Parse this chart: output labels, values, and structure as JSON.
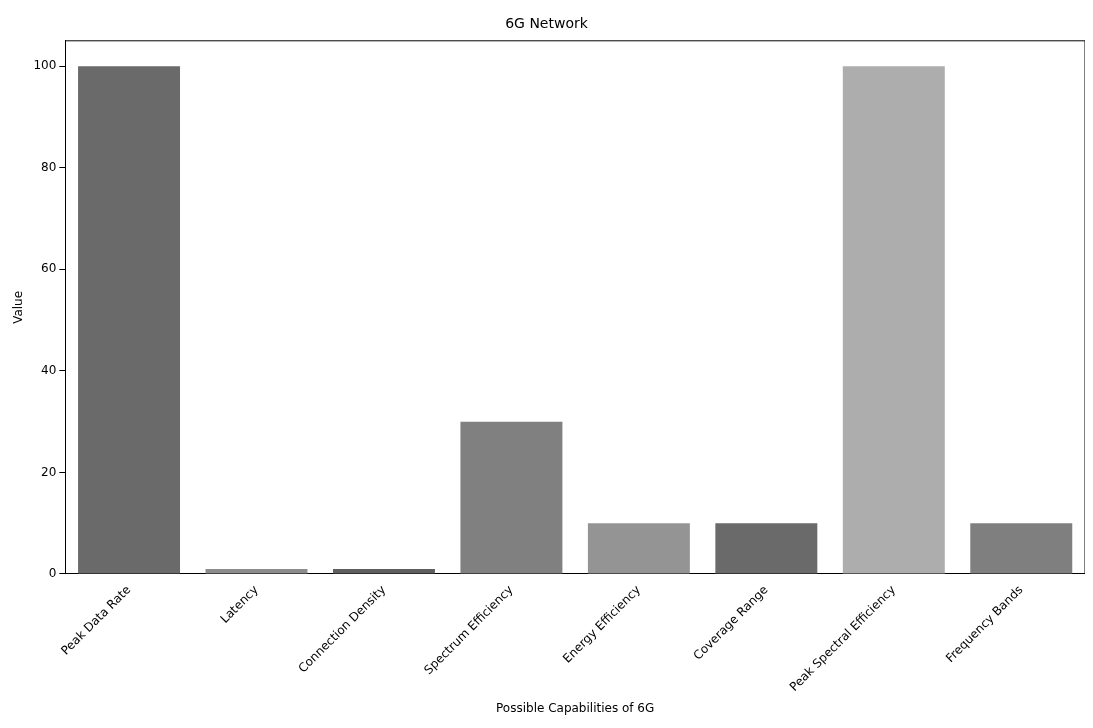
{
  "chart_data": {
    "type": "bar",
    "title": "6G Network",
    "xlabel": "Possible Capabilities of 6G",
    "ylabel": "Value",
    "categories": [
      "Peak Data Rate",
      "Latency",
      "Connection Density",
      "Spectrum Efficiency",
      "Energy Efficiency",
      "Coverage Range",
      "Peak Spectral Efficiency",
      "Frequency Bands"
    ],
    "values": [
      100,
      1,
      1,
      30,
      10,
      10,
      100,
      10
    ],
    "colors": [
      "#6a6a6a",
      "#8c8c8c",
      "#5f5f5f",
      "#808080",
      "#949494",
      "#6a6a6a",
      "#adadad",
      "#7f7f7f"
    ],
    "ylim": [
      0,
      105
    ],
    "yticks": [
      0,
      20,
      40,
      60,
      80,
      100
    ],
    "grid": false,
    "legend": false
  }
}
